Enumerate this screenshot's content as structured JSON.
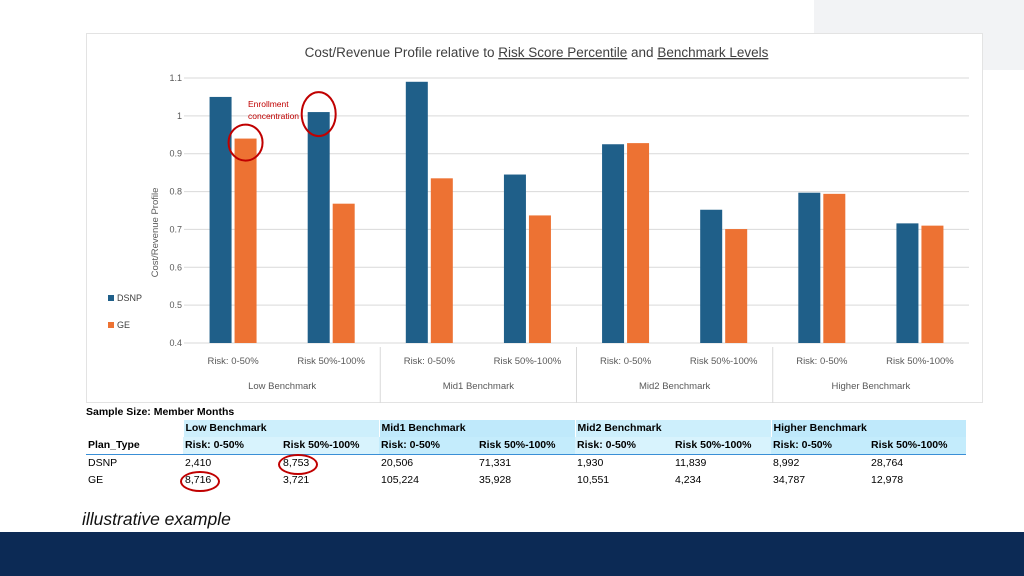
{
  "chart_data": {
    "type": "bar",
    "title_parts": [
      "Cost/Revenue Profile relative to ",
      "Risk Score Percentile",
      " and ",
      "Benchmark Levels"
    ],
    "ylabel": "Cost/Revenue Profile",
    "xlabel": "",
    "ylim": [
      0.4,
      1.1
    ],
    "yticks": [
      "0.4",
      "0.5",
      "0.6",
      "0.7",
      "0.8",
      "0.9",
      "1",
      "1.1"
    ],
    "groups": [
      "Low Benchmark",
      "Mid1 Benchmark",
      "Mid2 Benchmark",
      "Higher Benchmark"
    ],
    "categories": [
      "Risk: 0-50%",
      "Risk 50%-100%",
      "Risk: 0-50%",
      "Risk 50%-100%",
      "Risk: 0-50%",
      "Risk 50%-100%",
      "Risk: 0-50%",
      "Risk 50%-100%"
    ],
    "series": [
      {
        "name": "DSNP",
        "color": "#1f5f89",
        "values": [
          1.05,
          1.01,
          1.09,
          0.845,
          0.925,
          0.752,
          0.797,
          0.716
        ]
      },
      {
        "name": "GE",
        "color": "#ed7233",
        "values": [
          0.94,
          0.768,
          0.835,
          0.737,
          0.928,
          0.701,
          0.794,
          0.71
        ]
      }
    ],
    "legend_position": "left",
    "grid": true,
    "annotation": {
      "lines": [
        "Enrollment",
        "concentration"
      ],
      "color": "#c00000"
    }
  },
  "table": {
    "title": "Sample Size: Member Months",
    "group_headers": [
      "Low Benchmark",
      "Mid1 Benchmark",
      "Mid2 Benchmark",
      "Higher Benchmark"
    ],
    "row_header_label": "Plan_Type",
    "sub_headers": [
      "Risk: 0-50%",
      "Risk 50%-100%",
      "Risk: 0-50%",
      "Risk 50%-100%",
      "Risk: 0-50%",
      "Risk 50%-100%",
      "Risk: 0-50%",
      "Risk 50%-100%"
    ],
    "rows": [
      {
        "label": "DSNP",
        "values": [
          "2,410",
          "8,753",
          "20,506",
          "71,331",
          "1,930",
          "11,839",
          "8,992",
          "28,764"
        ]
      },
      {
        "label": "GE",
        "values": [
          "8,716",
          "3,721",
          "105,224",
          "35,928",
          "10,551",
          "4,234",
          "34,787",
          "12,978"
        ]
      }
    ]
  },
  "footnote": "illustrative example",
  "colors": {
    "footer": "#0c2a55",
    "highlight": "#c00000",
    "table_header": "#cdeffc"
  }
}
